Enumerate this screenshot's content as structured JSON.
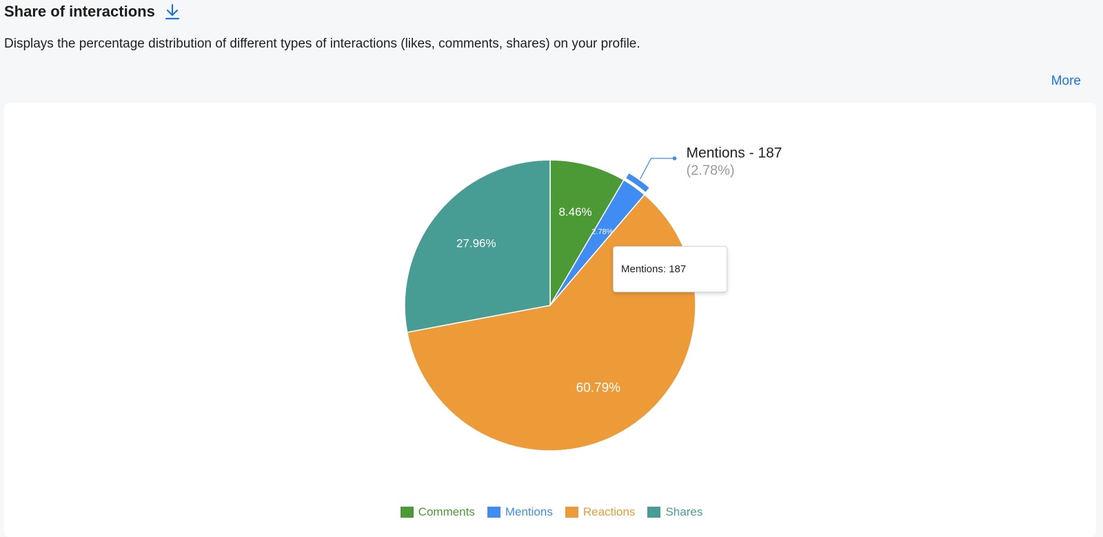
{
  "header": {
    "title": "Share of interactions",
    "description": "Displays the percentage distribution of different types of interactions (likes, comments, shares) on your profile.",
    "more_label": "More"
  },
  "icons": {
    "download": "download-icon"
  },
  "tooltip": {
    "text": "Mentions: 187"
  },
  "callout": {
    "line1": "Mentions - 187",
    "line2": "(2.78%)"
  },
  "chart_data": {
    "type": "pie",
    "title": "",
    "start_angle": 0,
    "slices": [
      {
        "name": "Comments",
        "percent": 8.46,
        "label": "8.46%",
        "color": "#4b9a36"
      },
      {
        "name": "Mentions",
        "value": 187,
        "percent": 2.78,
        "label": "2.78%",
        "color": "#3f8cf2",
        "highlighted": true
      },
      {
        "name": "Reactions",
        "percent": 60.79,
        "label": "60.79%",
        "color": "#ec9b38"
      },
      {
        "name": "Shares",
        "percent": 27.96,
        "label": "27.96%",
        "color": "#479d94"
      }
    ],
    "legend": {
      "placement": "bottom"
    }
  }
}
